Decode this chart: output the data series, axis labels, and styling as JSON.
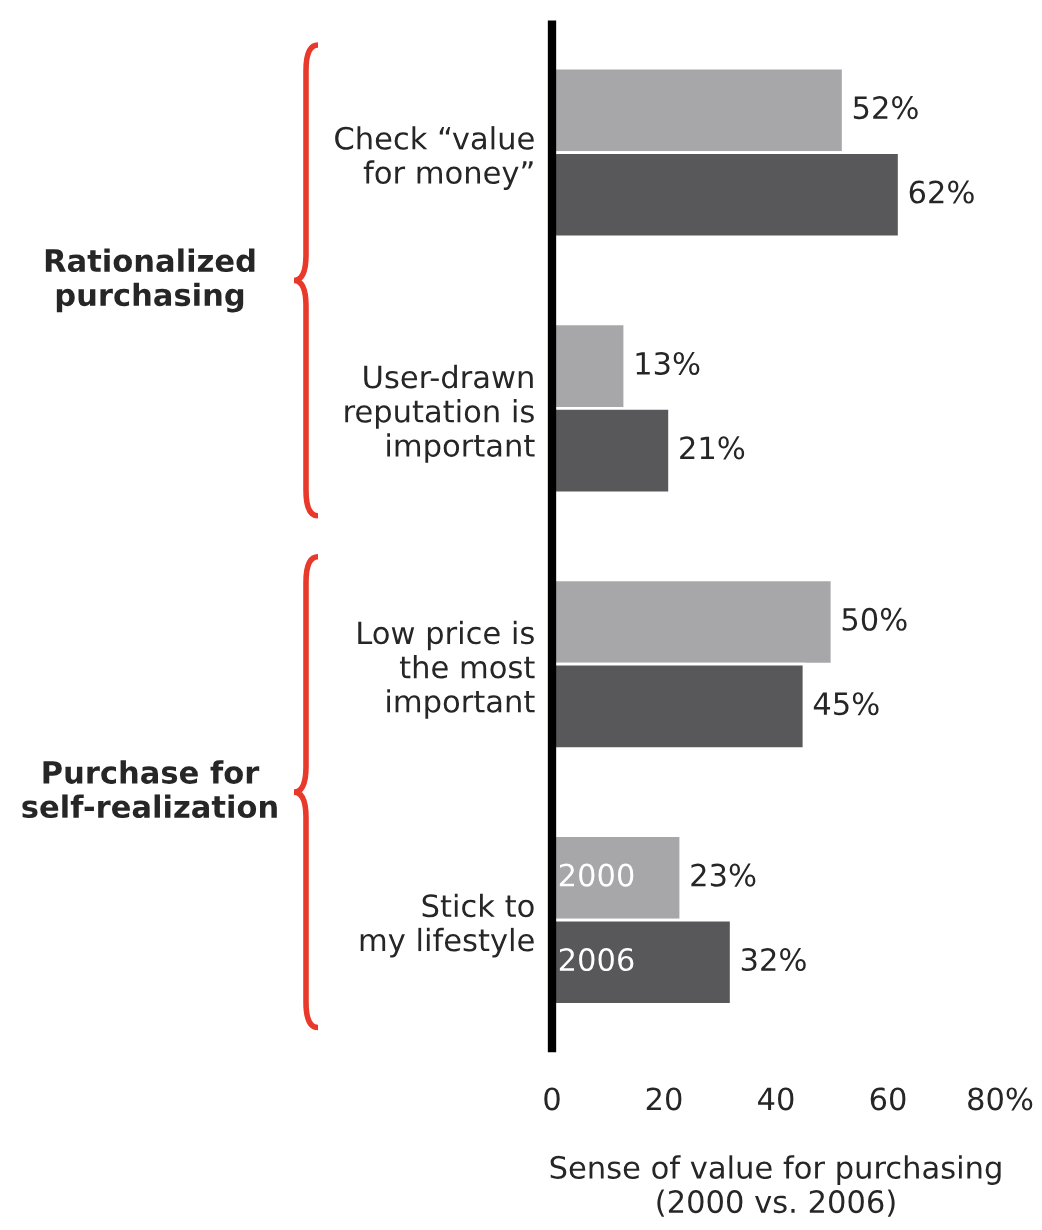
{
  "chart_data": {
    "type": "bar",
    "orientation": "horizontal",
    "categories": [
      "Check “value\nfor money”",
      "User-drawn\nreputation is\nimportant",
      "Low price is\nthe most\nimportant",
      "Stick to\nmy lifestyle"
    ],
    "series": [
      {
        "name": "2000",
        "color": "#a7a7a9",
        "values": [
          52,
          13,
          50,
          23
        ],
        "value_labels": [
          "52%",
          "13%",
          "50%",
          "23%"
        ]
      },
      {
        "name": "2006",
        "color": "#58585a",
        "values": [
          62,
          21,
          45,
          32
        ],
        "value_labels": [
          "62%",
          "21%",
          "45%",
          "32%"
        ]
      }
    ],
    "xlim": [
      0,
      80
    ],
    "xticks": [
      0,
      20,
      40,
      60,
      {
        "value": 80,
        "label": "80%"
      }
    ],
    "xlabel": "Sense of value for purchasing\n(2000 vs. 2006)",
    "annotations": [
      "Rationalized\npurchasing",
      "Purchase for\nself-realization"
    ],
    "grid": false,
    "legend": false
  }
}
